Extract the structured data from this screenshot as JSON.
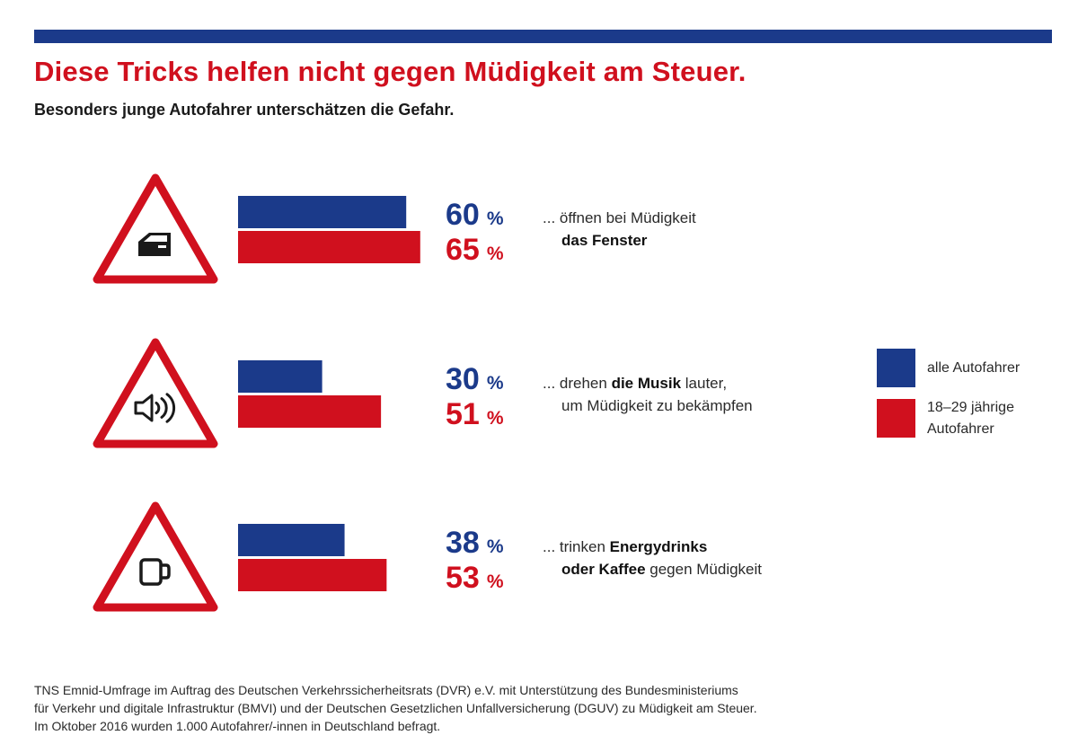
{
  "header": {
    "title": "Diese Tricks helfen nicht gegen Müdigkeit am Steuer.",
    "subtitle": "Besonders junge Autofahrer unterschätzen die Gefahr."
  },
  "colors": {
    "all_drivers": "#1b3a8a",
    "young_drivers": "#d0101e",
    "accent_bar": "#1b3a8a"
  },
  "chart_data": {
    "type": "bar",
    "orientation": "horizontal",
    "categories": [
      "... öffnen bei Müdigkeit das Fenster",
      "... drehen die Musik lauter, um Müdigkeit zu bekämpfen",
      "... trinken Energydrinks oder Kaffee gegen Müdigkeit"
    ],
    "series": [
      {
        "name": "alle Autofahrer",
        "values": [
          60,
          30,
          38
        ]
      },
      {
        "name": "18–29 jährige Autofahrer",
        "values": [
          65,
          51,
          53
        ]
      }
    ],
    "unit": "%",
    "xlim": [
      0,
      100
    ],
    "icons": [
      "car-door-window-icon",
      "speaker-icon",
      "coffee-cup-icon"
    ]
  },
  "rows": [
    {
      "text_pre": "... öffnen bei Müdigkeit",
      "text_bold": "das Fenster",
      "text_post": ""
    },
    {
      "line1_pre": "... drehen ",
      "line1_bold": "die Musik",
      "line1_post": " lauter,",
      "line2": "um Müdigkeit zu bekämpfen"
    },
    {
      "line1_pre": "... trinken ",
      "line1_bold": "Energydrinks",
      "line2_bold": "oder Kaffee",
      "line2_post": " gegen Müdigkeit"
    }
  ],
  "legend": {
    "all_label": "alle Autofahrer",
    "young_label_line1": "18–29 jährige",
    "young_label_line2": "Autofahrer"
  },
  "footnote": {
    "line1": "TNS Emnid-Umfrage im Auftrag des Deutschen Verkehrssicherheitsrats (DVR) e.V. mit Unterstützung des Bundesministeriums",
    "line2": "für Verkehr und digitale Infrastruktur (BMVI) und der Deutschen Gesetzlichen Unfallversicherung (DGUV) zu Müdigkeit am Steuer.",
    "line3": "Im Oktober 2016 wurden 1.000 Autofahrer/-innen in Deutschland befragt."
  }
}
